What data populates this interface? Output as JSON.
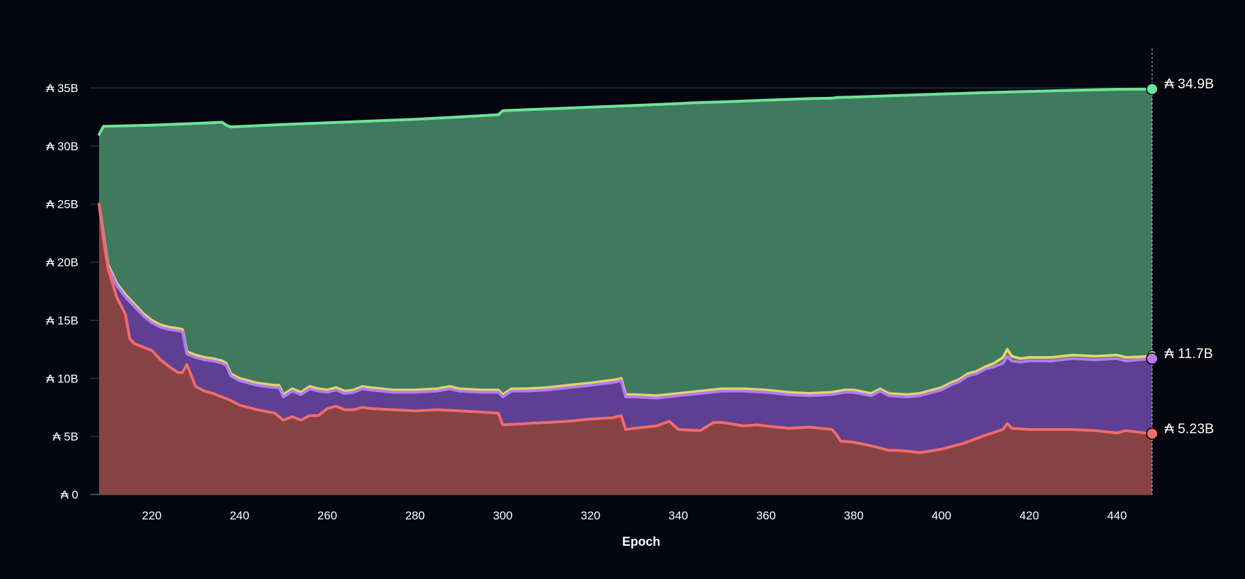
{
  "chart_data": {
    "type": "area",
    "title": "",
    "xlabel": "Epoch",
    "ylabel": "",
    "xlim": [
      208,
      448
    ],
    "ylim": [
      0,
      35
    ],
    "y_unit": "B",
    "currency_symbol": "₳",
    "x_ticks": [
      220,
      240,
      260,
      280,
      300,
      320,
      340,
      360,
      380,
      400,
      420,
      440
    ],
    "y_ticks": [
      0,
      5,
      10,
      15,
      20,
      25,
      30,
      35
    ],
    "y_tick_labels": [
      "₳ 0",
      "₳ 5B",
      "₳ 10B",
      "₳ 15B",
      "₳ 20B",
      "₳ 25B",
      "₳ 30B",
      "₳ 35B"
    ],
    "grid": "horizontal",
    "colors": {
      "background": "#03060f",
      "green_line": "#6ee49a",
      "green_fill": "#3f7a5e",
      "purple_line": "#b07cf2",
      "purple_fill": "#5e3f91",
      "yellow_line": "#e7d26a",
      "red_line": "#f06b6b",
      "red_fill": "#874243",
      "grid": "#4b8a6b",
      "zero_line": "#8a8f99"
    },
    "series": [
      {
        "key": "green",
        "x": [
          208,
          209,
          210,
          215,
          220,
          230,
          236,
          237,
          238,
          250,
          260,
          270,
          280,
          290,
          299,
          300,
          310,
          320,
          330,
          340,
          343,
          350,
          360,
          370,
          375,
          376,
          380,
          390,
          400,
          410,
          420,
          430,
          440,
          444,
          448
        ],
        "values": [
          31.0,
          31.7,
          31.7,
          31.75,
          31.8,
          31.95,
          32.05,
          31.8,
          31.65,
          31.85,
          32.0,
          32.15,
          32.3,
          32.5,
          32.7,
          33.05,
          33.2,
          33.35,
          33.5,
          33.65,
          33.72,
          33.8,
          33.95,
          34.08,
          34.12,
          34.18,
          34.22,
          34.35,
          34.48,
          34.6,
          34.7,
          34.8,
          34.88,
          34.9,
          34.9
        ]
      },
      {
        "key": "yellow",
        "x": [
          208,
          210,
          212,
          214,
          216,
          218,
          220,
          222,
          224,
          226,
          227,
          228,
          230,
          232,
          234,
          236,
          237,
          238,
          240,
          242,
          244,
          246,
          248,
          249,
          250,
          252,
          254,
          256,
          258,
          260,
          262,
          264,
          266,
          268,
          270,
          275,
          280,
          285,
          288,
          290,
          295,
          299,
          300,
          302,
          305,
          310,
          315,
          320,
          324,
          326,
          327,
          328,
          330,
          335,
          340,
          345,
          350,
          355,
          360,
          365,
          370,
          375,
          378,
          380,
          384,
          386,
          388,
          392,
          395,
          398,
          400,
          402,
          404,
          406,
          408,
          410,
          412,
          414,
          415,
          416,
          418,
          420,
          425,
          430,
          435,
          440,
          442,
          448
        ],
        "values": [
          25.0,
          19.8,
          18.2,
          17.2,
          16.4,
          15.6,
          15.0,
          14.6,
          14.4,
          14.3,
          14.2,
          12.3,
          12.0,
          11.8,
          11.7,
          11.5,
          11.3,
          10.4,
          10.0,
          9.8,
          9.6,
          9.5,
          9.4,
          9.4,
          8.6,
          9.1,
          8.8,
          9.3,
          9.1,
          9.0,
          9.2,
          8.9,
          9.0,
          9.3,
          9.2,
          9.0,
          9.0,
          9.1,
          9.3,
          9.1,
          9.0,
          9.0,
          8.6,
          9.1,
          9.1,
          9.2,
          9.4,
          9.6,
          9.8,
          9.9,
          10.0,
          8.6,
          8.6,
          8.5,
          8.7,
          8.9,
          9.1,
          9.1,
          9.0,
          8.8,
          8.7,
          8.8,
          9.0,
          9.0,
          8.7,
          9.1,
          8.7,
          8.6,
          8.7,
          9.0,
          9.2,
          9.6,
          9.9,
          10.4,
          10.6,
          11.0,
          11.3,
          11.8,
          12.5,
          11.9,
          11.7,
          11.8,
          11.8,
          12.0,
          11.9,
          12.0,
          11.8,
          11.9
        ]
      },
      {
        "key": "purple",
        "x": [
          208,
          210,
          212,
          214,
          216,
          218,
          220,
          222,
          224,
          226,
          227,
          228,
          230,
          232,
          234,
          236,
          237,
          238,
          240,
          242,
          244,
          246,
          248,
          249,
          250,
          252,
          254,
          256,
          258,
          260,
          262,
          264,
          266,
          268,
          270,
          275,
          280,
          285,
          288,
          290,
          295,
          299,
          300,
          302,
          305,
          310,
          315,
          320,
          324,
          326,
          327,
          328,
          330,
          335,
          340,
          345,
          350,
          355,
          360,
          365,
          370,
          375,
          378,
          380,
          384,
          386,
          388,
          392,
          395,
          398,
          400,
          402,
          404,
          406,
          408,
          410,
          412,
          414,
          415,
          416,
          418,
          420,
          425,
          430,
          435,
          440,
          442,
          448
        ],
        "values": [
          25.0,
          19.6,
          18.0,
          17.0,
          16.2,
          15.4,
          14.8,
          14.4,
          14.2,
          14.1,
          14.0,
          12.1,
          11.8,
          11.6,
          11.5,
          11.3,
          11.1,
          10.2,
          9.8,
          9.6,
          9.4,
          9.3,
          9.2,
          9.2,
          8.4,
          8.9,
          8.6,
          9.1,
          8.9,
          8.8,
          9.0,
          8.7,
          8.8,
          9.1,
          9.0,
          8.8,
          8.8,
          8.9,
          9.1,
          8.9,
          8.8,
          8.8,
          8.4,
          8.9,
          8.9,
          9.0,
          9.2,
          9.4,
          9.6,
          9.7,
          9.8,
          8.4,
          8.4,
          8.3,
          8.5,
          8.7,
          8.9,
          8.9,
          8.8,
          8.6,
          8.5,
          8.6,
          8.8,
          8.8,
          8.5,
          8.9,
          8.5,
          8.4,
          8.5,
          8.8,
          9.0,
          9.4,
          9.7,
          10.2,
          10.4,
          10.8,
          11.0,
          11.3,
          11.9,
          11.5,
          11.4,
          11.5,
          11.5,
          11.7,
          11.6,
          11.7,
          11.5,
          11.7
        ]
      },
      {
        "key": "red",
        "x": [
          208,
          209,
          210,
          212,
          214,
          215,
          216,
          218,
          220,
          222,
          224,
          226,
          227,
          228,
          230,
          232,
          234,
          236,
          238,
          240,
          244,
          248,
          250,
          252,
          254,
          256,
          258,
          260,
          262,
          264,
          266,
          268,
          270,
          275,
          280,
          285,
          290,
          295,
          299,
          300,
          305,
          310,
          315,
          320,
          325,
          327,
          328,
          330,
          335,
          338,
          340,
          345,
          348,
          350,
          355,
          358,
          360,
          365,
          370,
          375,
          376,
          377,
          380,
          385,
          388,
          390,
          393,
          395,
          400,
          405,
          410,
          414,
          415,
          416,
          420,
          425,
          430,
          435,
          440,
          442,
          448
        ],
        "values": [
          25.0,
          22.0,
          19.5,
          17.0,
          15.5,
          13.4,
          13.0,
          12.7,
          12.4,
          11.6,
          11.0,
          10.5,
          10.5,
          11.2,
          9.3,
          8.9,
          8.7,
          8.4,
          8.1,
          7.7,
          7.3,
          7.0,
          6.4,
          6.7,
          6.4,
          6.8,
          6.8,
          7.4,
          7.6,
          7.3,
          7.3,
          7.5,
          7.4,
          7.3,
          7.2,
          7.3,
          7.2,
          7.1,
          7.0,
          6.0,
          6.1,
          6.2,
          6.3,
          6.5,
          6.6,
          6.8,
          5.6,
          5.7,
          5.9,
          6.3,
          5.6,
          5.5,
          6.2,
          6.2,
          5.9,
          6.0,
          5.9,
          5.7,
          5.8,
          5.6,
          5.2,
          4.6,
          4.5,
          4.1,
          3.8,
          3.8,
          3.7,
          3.6,
          3.9,
          4.4,
          5.1,
          5.6,
          6.1,
          5.7,
          5.6,
          5.6,
          5.6,
          5.5,
          5.3,
          5.5,
          5.23
        ]
      }
    ],
    "end_labels": [
      {
        "series": "green",
        "text": "₳ 34.9B",
        "value": 34.9
      },
      {
        "series": "purple",
        "text": "₳ 11.7B",
        "value": 11.7
      },
      {
        "series": "red",
        "text": "₳ 5.23B",
        "value": 5.23
      }
    ]
  }
}
